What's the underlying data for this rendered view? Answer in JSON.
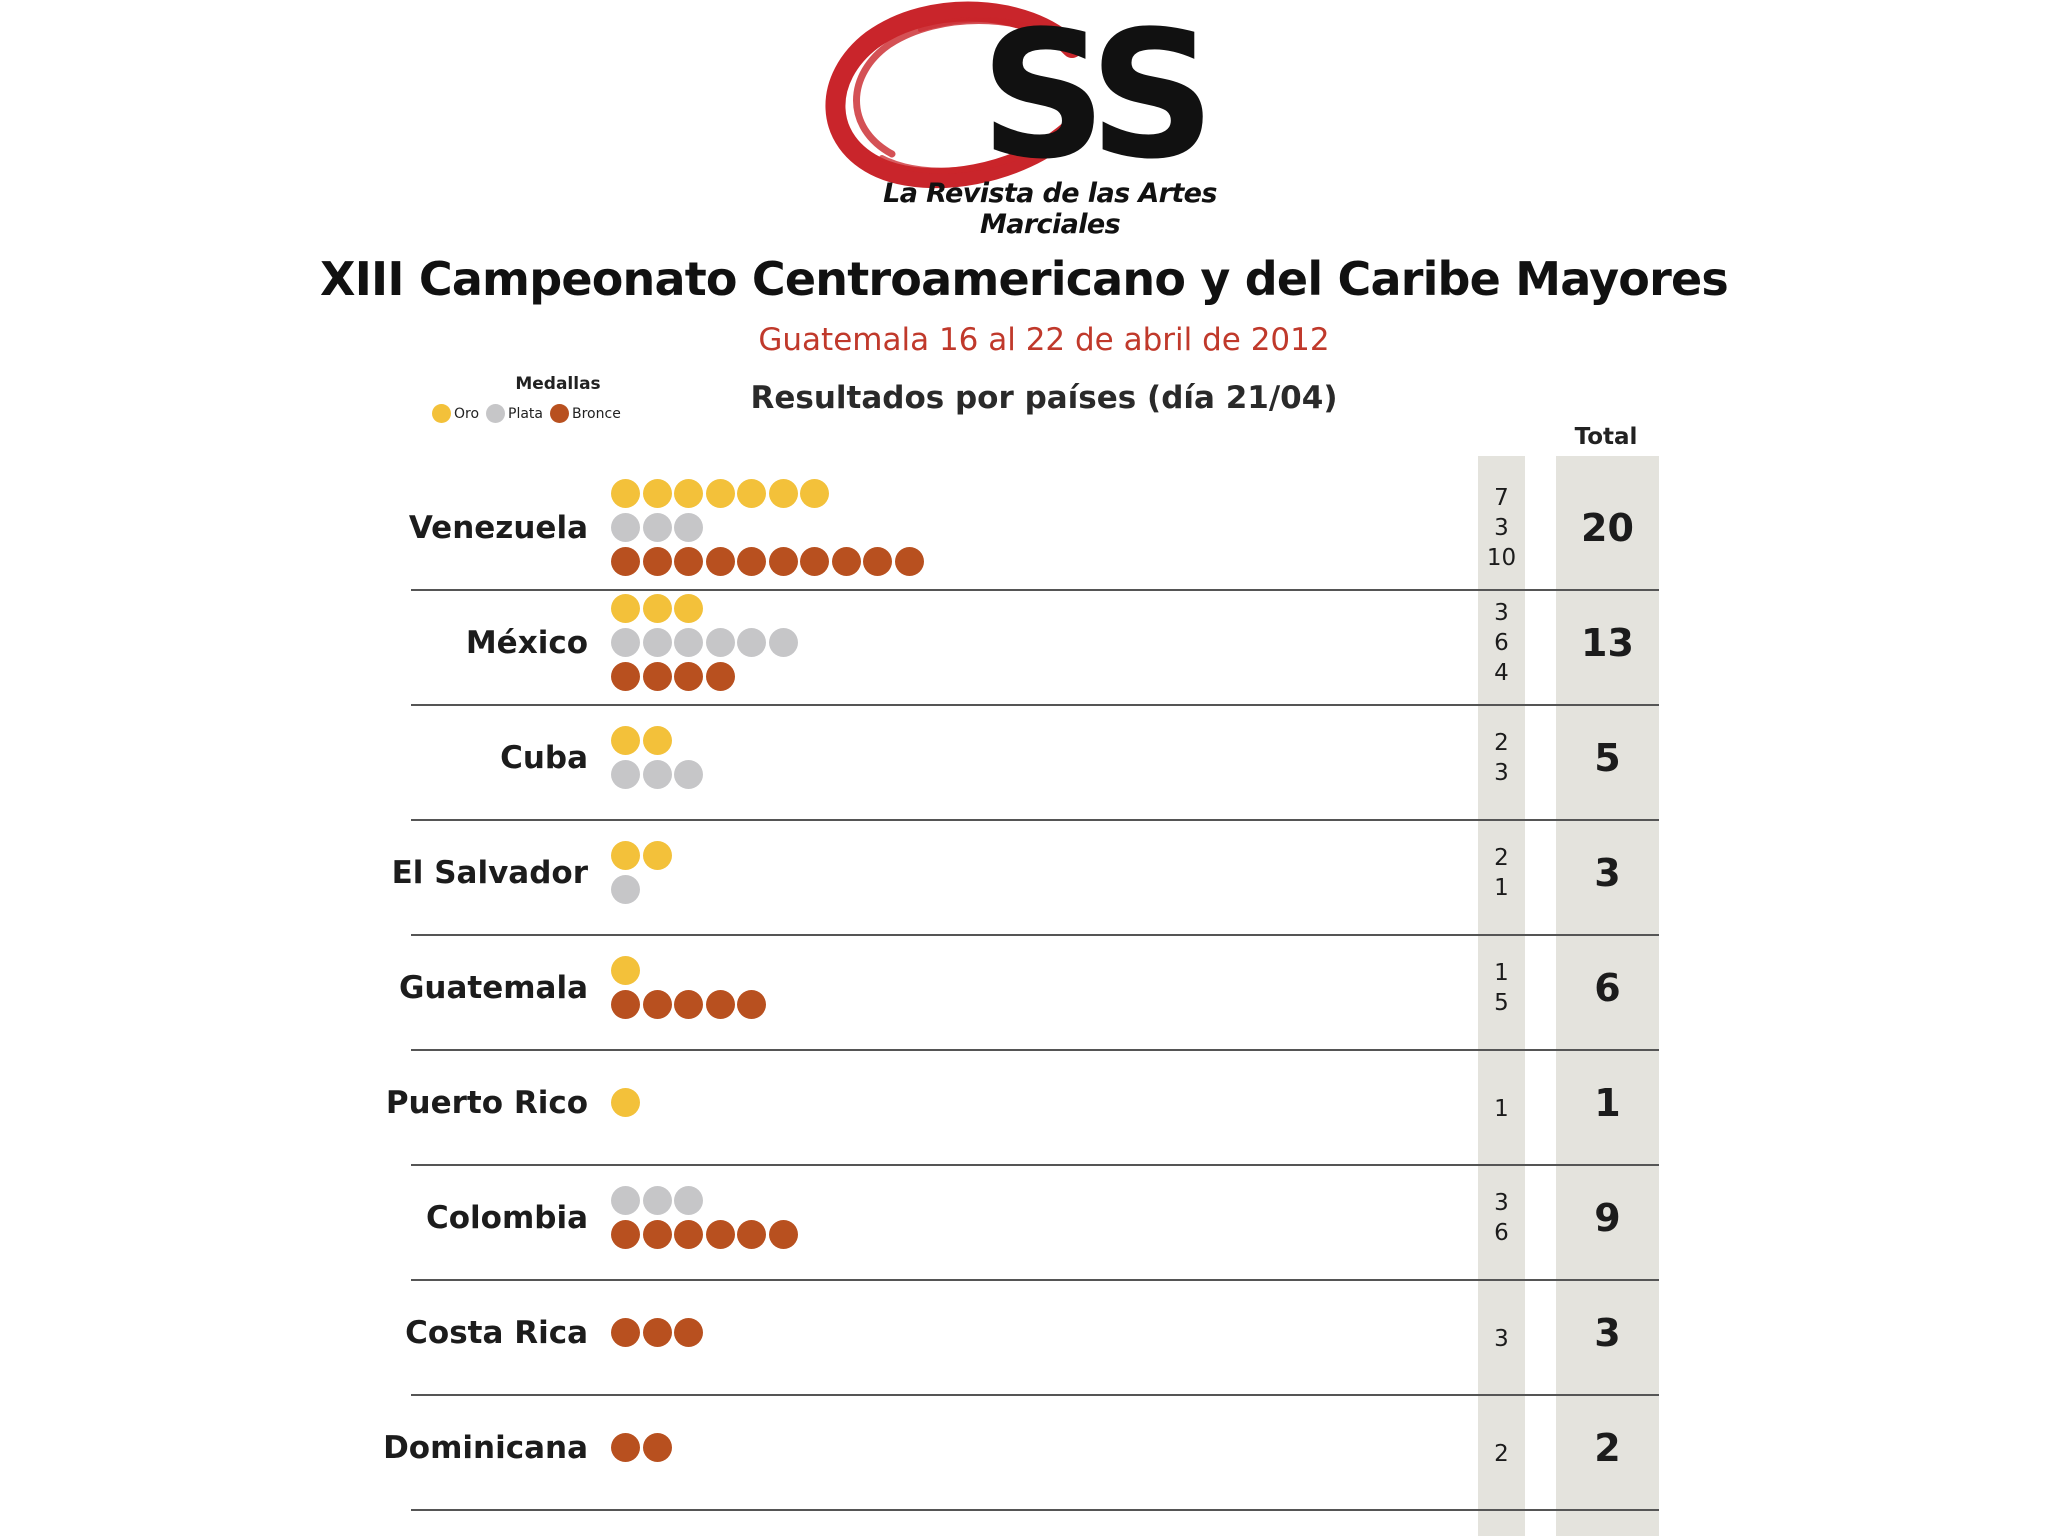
{
  "header": {
    "logo_text": "OSS",
    "tagline": "La Revista de las Artes Marciales",
    "title": "XIII Campeonato Centroamericano y del Caribe Mayores",
    "subtitle": "Guatemala 16 al 22 de abril de 2012",
    "heading": "Resultados por países (día 21/04)"
  },
  "legend": {
    "title": "Medallas",
    "gold": "Oro",
    "silver": "Plata",
    "bronze": "Bronce"
  },
  "total_header": "Total",
  "colors": {
    "gold": "#f3c13a",
    "silver": "#c6c6c8",
    "bronze": "#b8501f",
    "logo_red": "#c9252b",
    "subtitle_red": "#c0392b",
    "column_bg": "#e4e3dd"
  },
  "chart_data": {
    "type": "table",
    "title": "XIII Campeonato Centroamericano y del Caribe Mayores",
    "subtitle": "Guatemala 16 al 22 de abril de 2012",
    "series_names": [
      "Oro",
      "Plata",
      "Bronce"
    ],
    "rows": [
      {
        "country": "Venezuela",
        "gold": 7,
        "silver": 3,
        "bronze": 10,
        "total": 20
      },
      {
        "country": "México",
        "gold": 3,
        "silver": 6,
        "bronze": 4,
        "total": 13
      },
      {
        "country": "Cuba",
        "gold": 2,
        "silver": 3,
        "bronze": 0,
        "total": 5
      },
      {
        "country": "El Salvador",
        "gold": 2,
        "silver": 1,
        "bronze": 0,
        "total": 3
      },
      {
        "country": "Guatemala",
        "gold": 1,
        "silver": 0,
        "bronze": 5,
        "total": 6
      },
      {
        "country": "Puerto Rico",
        "gold": 1,
        "silver": 0,
        "bronze": 0,
        "total": 1
      },
      {
        "country": "Colombia",
        "gold": 0,
        "silver": 3,
        "bronze": 6,
        "total": 9
      },
      {
        "country": "Costa Rica",
        "gold": 0,
        "silver": 0,
        "bronze": 3,
        "total": 3
      },
      {
        "country": "Dominicana",
        "gold": 0,
        "silver": 0,
        "bronze": 2,
        "total": 2
      }
    ]
  }
}
